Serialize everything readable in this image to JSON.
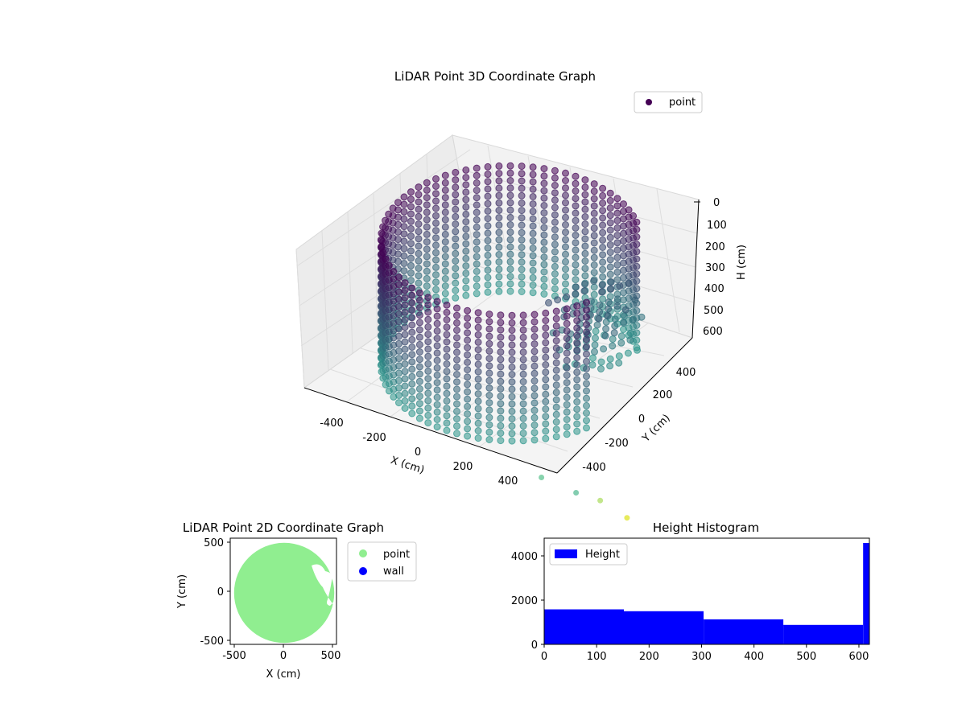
{
  "chart_data": [
    {
      "type": "scatter",
      "projection": "3d",
      "title": "LiDAR Point 3D Coordinate Graph",
      "xlabel": "X (cm)",
      "ylabel": "Y (cm)",
      "zlabel": "H (cm)",
      "x_ticks": [
        "-400",
        "-200",
        "0",
        "200",
        "400"
      ],
      "y_ticks": [
        "-400",
        "-200",
        "0",
        "200",
        "400"
      ],
      "z_ticks": [
        "0",
        "100",
        "200",
        "300",
        "400",
        "500",
        "600"
      ],
      "z_inverted": true,
      "legend": {
        "position": "top-right",
        "entries": [
          "point"
        ]
      },
      "colormap": "viridis",
      "colors": {
        "low": "#440154",
        "mid": "#2a9a8c",
        "high": "#dde318"
      },
      "series": [
        {
          "name": "point",
          "description_shape": "cylindrical wall radius ~500 cm, height 0-600 cm",
          "wall_radius": 500,
          "height_range": [
            0,
            610
          ],
          "outlier_points": [
            {
              "x": 430,
              "y": -520,
              "h": 650
            },
            {
              "x": 560,
              "y": -480,
              "h": 700
            },
            {
              "x": 610,
              "y": -380,
              "h": 780
            },
            {
              "x": 700,
              "y": -330,
              "h": 860
            }
          ]
        }
      ]
    },
    {
      "type": "scatter",
      "title": "LiDAR Point 2D Coordinate Graph",
      "xlabel": "X (cm)",
      "ylabel": "Y (cm)",
      "xlim": [
        -530,
        530
      ],
      "ylim": [
        -530,
        530
      ],
      "x_ticks": [
        "-500",
        "0",
        "500"
      ],
      "y_ticks": [
        "-500",
        "0",
        "500"
      ],
      "legend": {
        "position": "outside-right",
        "entries": [
          "point",
          "wall"
        ]
      },
      "series": [
        {
          "name": "point",
          "color": "#90ee90",
          "shape": "filled disc radius ~500 cm"
        },
        {
          "name": "wall",
          "color": "#0000ff",
          "values": []
        }
      ]
    },
    {
      "type": "bar",
      "title": "Height Histogram",
      "xlabel": "",
      "ylabel": "",
      "xlim": [
        0,
        620
      ],
      "ylim": [
        0,
        4800
      ],
      "x_ticks": [
        "0",
        "100",
        "200",
        "300",
        "400",
        "500",
        "600"
      ],
      "y_ticks": [
        "0",
        "2000",
        "4000"
      ],
      "legend": {
        "position": "top-left",
        "entries": [
          "Height"
        ]
      },
      "color": "#0000ff",
      "series": [
        {
          "name": "Height",
          "bins": [
            {
              "from": 0,
              "to": 152,
              "count": 1580
            },
            {
              "from": 152,
              "to": 304,
              "count": 1500
            },
            {
              "from": 304,
              "to": 456,
              "count": 1130
            },
            {
              "from": 456,
              "to": 608,
              "count": 880
            },
            {
              "from": 608,
              "to": 620,
              "count": 4580
            }
          ]
        }
      ]
    }
  ]
}
